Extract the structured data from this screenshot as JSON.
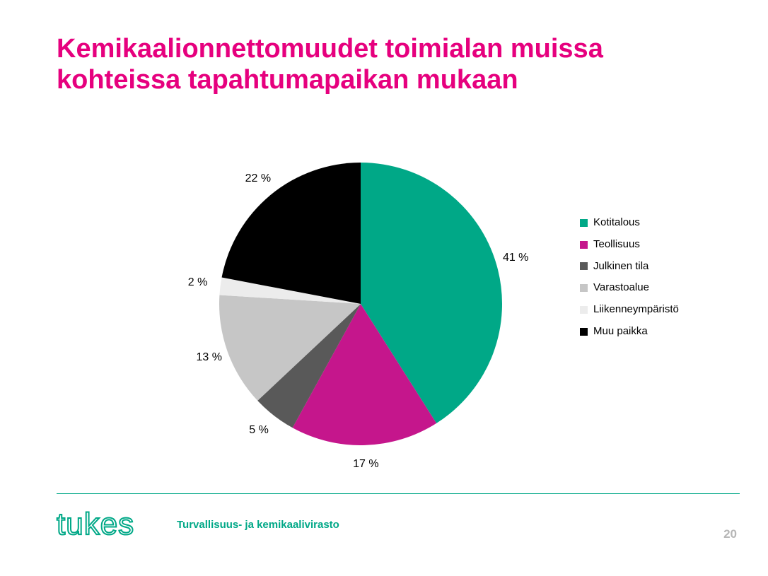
{
  "title": "Kemikaalionnettomuudet toimialan muissa kohteissa tapahtumapaikan mukaan",
  "title_color": "#e6007e",
  "title_fontsize": 38,
  "chart": {
    "type": "pie",
    "radius": 200,
    "start_angle_deg": -90,
    "background_color": "#ffffff",
    "label_fontsize": 16,
    "label_color": "#000000",
    "slices": [
      {
        "key": "kotitalous",
        "label": "Kotitalous",
        "value": 41,
        "pct_label": "41 %",
        "color": "#00a887"
      },
      {
        "key": "teollisuus",
        "label": "Teollisuus",
        "value": 17,
        "pct_label": "17 %",
        "color": "#c5168c"
      },
      {
        "key": "julkinen_tila",
        "label": "Julkinen tila",
        "value": 5,
        "pct_label": "5 %",
        "color": "#595959"
      },
      {
        "key": "varastoalue",
        "label": "Varastoalue",
        "value": 13,
        "pct_label": "13 %",
        "color": "#c6c6c6"
      },
      {
        "key": "liikenneymparisto",
        "label": "Liikenneympäristö",
        "value": 2,
        "pct_label": "2 %",
        "color": "#ececec"
      },
      {
        "key": "muu_paikka",
        "label": "Muu paikka",
        "value": 22,
        "pct_label": "22 %",
        "color": "#000000"
      }
    ]
  },
  "legend": {
    "fontsize": 15,
    "swatch_size": 11,
    "text_color": "#000000"
  },
  "footer": {
    "line_color": "#00a887",
    "logo_text": "tukes",
    "logo_color": "#00a887",
    "agency_text": "Turvallisuus- ja kemikaalivirasto",
    "agency_color": "#00a887",
    "page_number": "20",
    "page_number_color": "#b6b6b6"
  }
}
